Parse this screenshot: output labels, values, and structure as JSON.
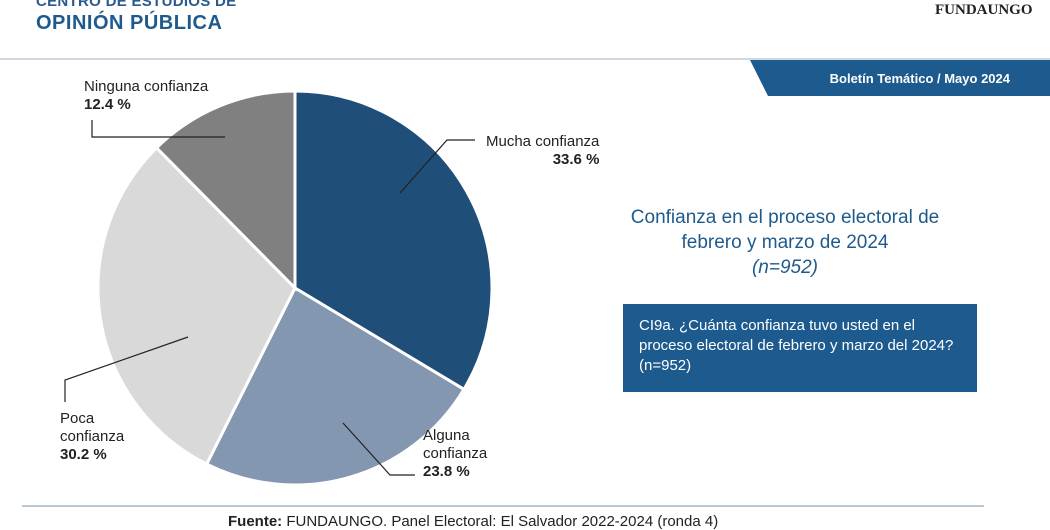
{
  "header": {
    "org_line1": "CENTRO DE ESTUDIOS DE",
    "org_line2": "OPINIÓN PÚBLICA",
    "logo": "FUNDAUNGO",
    "banner": "Boletín Temático / Mayo 2024"
  },
  "chart_data": {
    "type": "pie",
    "title": "Confianza en el proceso electoral de febrero y marzo de 2024",
    "subtitle": "(n=952)",
    "slices": [
      {
        "label": "Mucha confianza",
        "value": 33.6,
        "display": "33.6 %",
        "color": "#1f4e79"
      },
      {
        "label": "Alguna confianza",
        "value": 23.8,
        "display": "23.8 %",
        "color": "#8497b0"
      },
      {
        "label": "Poca confianza",
        "value": 30.2,
        "display": "30.2 %",
        "color": "#d9d9d9"
      },
      {
        "label": "Ninguna confianza",
        "value": 12.4,
        "display": "12.4 %",
        "color": "#808080"
      }
    ]
  },
  "question": "CI9a. ¿Cuánta confianza tuvo usted en el proceso electoral de febrero y marzo del 2024? (n=952)",
  "footer": {
    "source_label": "Fuente:",
    "source_text": " FUNDAUNGO. Panel Electoral: El Salvador 2022-2024 (ronda 4)"
  }
}
